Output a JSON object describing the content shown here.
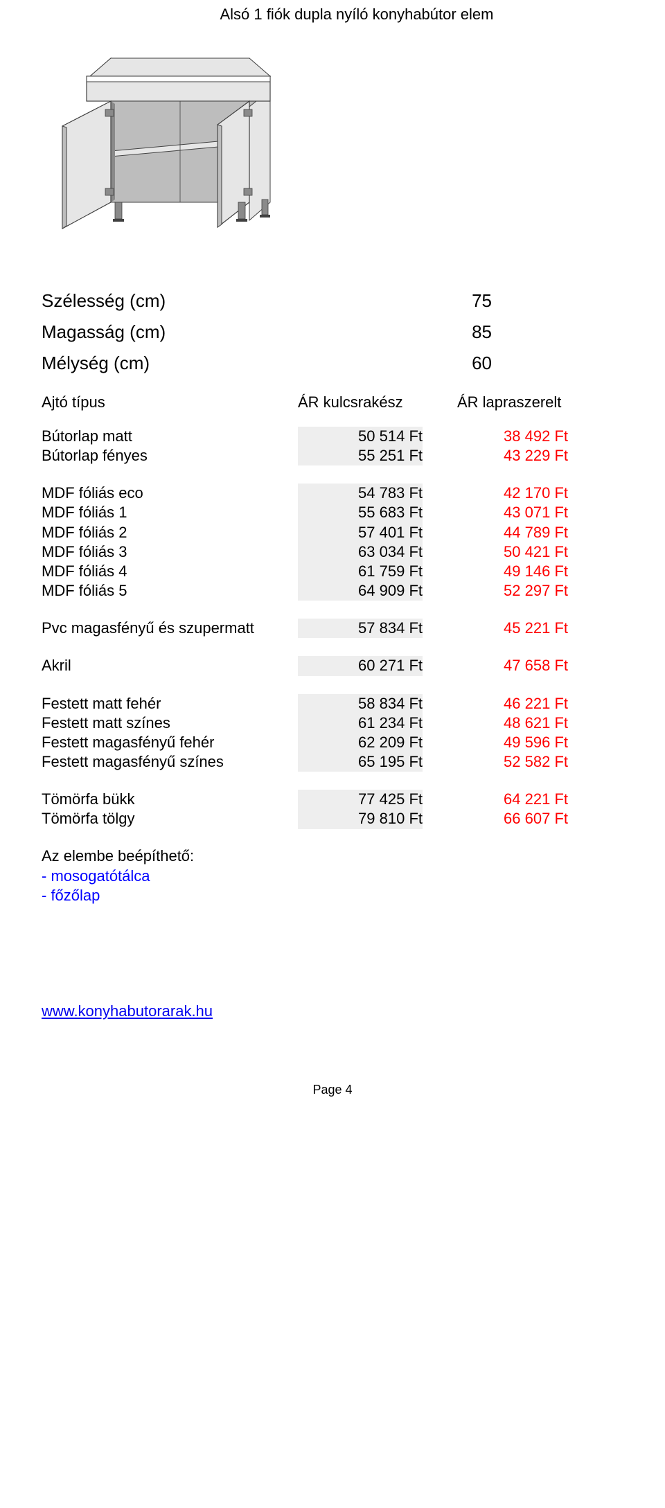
{
  "title": "Alsó 1 fiók dupla nyíló konyhabútor elem",
  "illustration": {
    "outline_color": "#404040",
    "fill_light": "#e6e6e6",
    "fill_mid": "#bdbdbd",
    "fill_dark": "#8a8a8a",
    "hinge_color": "#8a8a8a"
  },
  "dimensions": {
    "width_label": "Szélesség (cm)",
    "width_value": "75",
    "height_label": "Magasság (cm)",
    "height_value": "85",
    "depth_label": "Mélység (cm)",
    "depth_value": "60"
  },
  "header": {
    "col0": "Ajtó típus",
    "col1": "ÁR kulcsrakész",
    "col2": "ÁR lapraszerelt"
  },
  "groups": [
    {
      "rows": [
        {
          "label": "Bútorlap matt",
          "p1": "50 514 Ft",
          "p2": "38 492 Ft"
        },
        {
          "label": "Bútorlap fényes",
          "p1": "55 251 Ft",
          "p2": "43 229 Ft"
        }
      ]
    },
    {
      "rows": [
        {
          "label": "MDF fóliás eco",
          "p1": "54 783 Ft",
          "p2": "42 170 Ft"
        },
        {
          "label": "MDF fóliás 1",
          "p1": "55 683 Ft",
          "p2": "43 071 Ft"
        },
        {
          "label": "MDF fóliás 2",
          "p1": "57 401 Ft",
          "p2": "44 789 Ft"
        },
        {
          "label": "MDF fóliás 3",
          "p1": "63 034 Ft",
          "p2": "50 421 Ft"
        },
        {
          "label": "MDF fóliás 4",
          "p1": "61 759 Ft",
          "p2": "49 146 Ft"
        },
        {
          "label": "MDF fóliás 5",
          "p1": "64 909 Ft",
          "p2": "52 297 Ft"
        }
      ]
    },
    {
      "rows": [
        {
          "label": "Pvc magasfényű és szupermatt",
          "p1": "57 834 Ft",
          "p2": "45 221 Ft"
        }
      ]
    },
    {
      "rows": [
        {
          "label": "Akril",
          "p1": "60 271 Ft",
          "p2": "47 658 Ft"
        }
      ]
    },
    {
      "rows": [
        {
          "label": "Festett matt fehér",
          "p1": "58 834 Ft",
          "p2": "46 221 Ft"
        },
        {
          "label": "Festett matt színes",
          "p1": "61 234 Ft",
          "p2": "48 621 Ft"
        },
        {
          "label": "Festett magasfényű fehér",
          "p1": "62 209 Ft",
          "p2": "49 596 Ft"
        },
        {
          "label": "Festett magasfényű színes",
          "p1": "65 195 Ft",
          "p2": "52 582 Ft"
        }
      ]
    },
    {
      "rows": [
        {
          "label": "Tömörfa bükk",
          "p1": "77 425 Ft",
          "p2": "64 221 Ft"
        },
        {
          "label": "Tömörfa tölgy",
          "p1": "79 810 Ft",
          "p2": "66 607 Ft"
        }
      ]
    }
  ],
  "builtin": {
    "title": "Az elembe beépíthető:",
    "items": [
      "- mosogatótálca",
      "- főzőlap"
    ]
  },
  "footer_link": "www.konyhabutorarak.hu",
  "page_label": "Page 4"
}
